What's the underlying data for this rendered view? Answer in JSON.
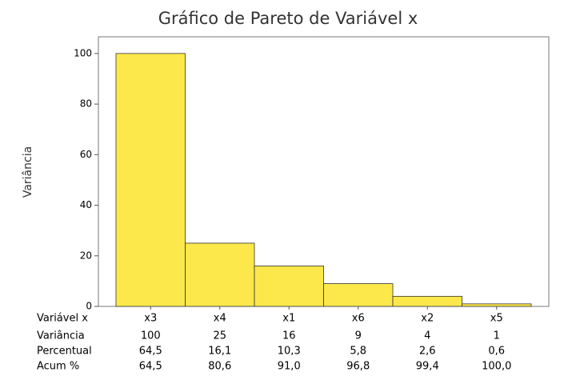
{
  "chart_data": {
    "type": "bar",
    "title": "Gráfico de Pareto de Variável x",
    "x_label": "Variável x",
    "y_label": "Variância",
    "categories": [
      "x3",
      "x4",
      "x1",
      "x6",
      "x2",
      "x5"
    ],
    "values": [
      100,
      25,
      16,
      9,
      4,
      1
    ],
    "color": "#fde84b",
    "ylim": [
      0,
      106.6
    ],
    "yticks": [
      0,
      20,
      40,
      60,
      80,
      100
    ],
    "grid": false,
    "percent": {
      "name": "Percentual",
      "values": [
        64.5,
        16.1,
        10.3,
        5.8,
        2.6,
        0.6
      ],
      "value_labels": [
        "64,5",
        "16,1",
        "10,3",
        "5,8",
        "2,6",
        "0,6"
      ]
    },
    "cumulative": {
      "name": "Acum %",
      "values": [
        64.5,
        80.6,
        91.0,
        96.8,
        99.4,
        100.0
      ],
      "value_labels": [
        "64,5",
        "80,6",
        "91,0",
        "96,8",
        "99,4",
        "100,0"
      ]
    }
  }
}
